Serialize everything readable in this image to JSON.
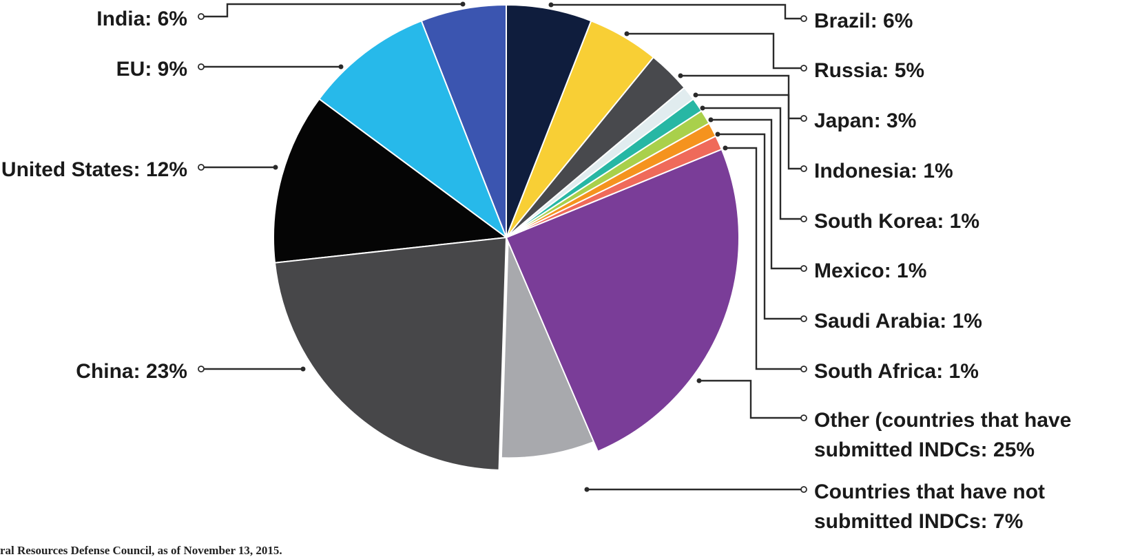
{
  "chart_data": {
    "type": "pie",
    "title": "",
    "slices": [
      {
        "label": "India: 6%",
        "value": 6,
        "color": "#3b55b0"
      },
      {
        "label": "EU: 9%",
        "value": 9,
        "color": "#27b9ea"
      },
      {
        "label": "United States: 12%",
        "value": 12,
        "color": "#050505"
      },
      {
        "label": "China: 23%",
        "value": 23,
        "color": "#474749"
      },
      {
        "label": "Countries that have not submitted INDCs: 7%",
        "value": 7,
        "color": "#a8a9ad",
        "exploded": true
      },
      {
        "label": "Other (countries that have submitted INDCs: 25%",
        "value": 25,
        "color": "#7a3d98"
      },
      {
        "label": "South Africa: 1%",
        "value": 1,
        "color": "#ef6a5a"
      },
      {
        "label": "Saudi Arabia: 1%",
        "value": 1,
        "color": "#f5931e"
      },
      {
        "label": "Mexico: 1%",
        "value": 1,
        "color": "#a9d04b"
      },
      {
        "label": "South Korea: 1%",
        "value": 1,
        "color": "#27b7a4"
      },
      {
        "label": "Indonesia: 1%",
        "value": 1,
        "color": "#e1ecef"
      },
      {
        "label": "Japan: 3%",
        "value": 3,
        "color": "#48494d"
      },
      {
        "label": "Russia: 5%",
        "value": 5,
        "color": "#f8cf35"
      },
      {
        "label": "Brazil: 6%",
        "value": 6,
        "color": "#0f1d3d"
      }
    ],
    "labels_left": [
      {
        "slice": "India",
        "lines": [
          "India: 6%"
        ]
      },
      {
        "slice": "EU",
        "lines": [
          "EU: 9%"
        ]
      },
      {
        "slice": "United States",
        "lines": [
          "United States: 12%"
        ]
      },
      {
        "slice": "China",
        "lines": [
          "China: 23%"
        ]
      }
    ],
    "labels_right": [
      {
        "slice": "Brazil",
        "lines": [
          "Brazil: 6%"
        ]
      },
      {
        "slice": "Russia",
        "lines": [
          "Russia: 5%"
        ]
      },
      {
        "slice": "Japan",
        "lines": [
          "Japan: 3%"
        ]
      },
      {
        "slice": "Indonesia",
        "lines": [
          "Indonesia: 1%"
        ]
      },
      {
        "slice": "South Korea",
        "lines": [
          "South Korea: 1%"
        ]
      },
      {
        "slice": "Mexico",
        "lines": [
          "Mexico: 1%"
        ]
      },
      {
        "slice": "Saudi Arabia",
        "lines": [
          "Saudi Arabia: 1%"
        ]
      },
      {
        "slice": "South Africa",
        "lines": [
          "South Africa: 1%"
        ]
      },
      {
        "slice": "Other",
        "lines": [
          "Other (countries that have",
          "submitted INDCs: 25%"
        ]
      },
      {
        "slice": "Not submitted",
        "lines": [
          "Countries that have not",
          "submitted INDCs: 7%"
        ]
      }
    ],
    "source_note": "ral Resources Defense Council, as of November 13, 2015."
  }
}
